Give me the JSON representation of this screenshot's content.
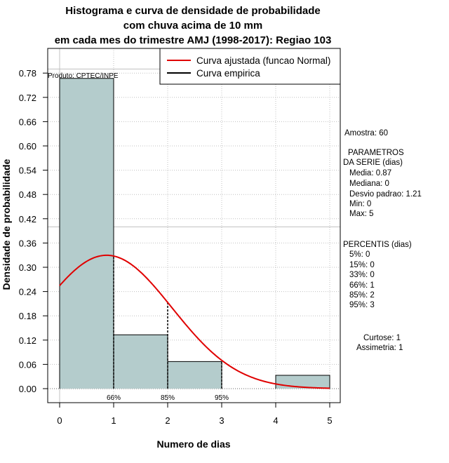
{
  "title_lines": [
    "Histograma e curva de densidade de probabilidade",
    "com chuva acima de 10 mm",
    "em cada mes do trimestre AMJ (1998-2017): Regiao 103"
  ],
  "producer": "Produto: CPTEC/INPE",
  "legend": {
    "items": [
      {
        "label": "Curva ajustada (funcao Normal)",
        "color": "#e00000"
      },
      {
        "label": "Curva empirica",
        "color": "#000000"
      }
    ]
  },
  "stats": {
    "sample": "Amostra: 60",
    "params_title_1": "PARAMETROS",
    "params_title_2": "DA SERIE (dias)",
    "params": [
      "Media: 0.87",
      "Mediana: 0",
      "Desvio padrao: 1.21",
      "Min: 0",
      "Max: 5"
    ],
    "percentis_title": "PERCENTIS (dias)",
    "percentis": [
      "5%: 0",
      "15%: 0",
      "33%: 0",
      "66%: 1",
      "85%: 2",
      "95%: 3"
    ],
    "curtose": "Curtose: 1",
    "assimetria": "Assimetria: 1"
  },
  "colors": {
    "bar_fill": "#b4cccc",
    "fitted": "#e00000",
    "grid": "#c0c0c0"
  },
  "chart_data": {
    "type": "bar",
    "title": "Histograma e curva de densidade de probabilidade com chuva acima de 10 mm em cada mes do trimestre AMJ (1998-2017): Regiao 103",
    "xlabel": "Numero de dias",
    "ylabel": "Densidade de probabilidade",
    "xlim": [
      0,
      5
    ],
    "ylim": [
      0,
      0.78
    ],
    "xticks": [
      0,
      1,
      2,
      3,
      4,
      5
    ],
    "xtick_labels": [
      "0",
      "1",
      "2",
      "3",
      "4",
      "5"
    ],
    "yticks": [
      0.0,
      0.06,
      0.12,
      0.18,
      0.24,
      0.3,
      0.36,
      0.42,
      0.48,
      0.54,
      0.6,
      0.66,
      0.72,
      0.78
    ],
    "ytick_labels": [
      "0.00",
      "0.06",
      "0.12",
      "0.18",
      "0.24",
      "0.30",
      "0.36",
      "0.42",
      "0.48",
      "0.54",
      "0.60",
      "0.66",
      "0.72",
      "0.78"
    ],
    "bins": [
      {
        "x0": 0,
        "x1": 1,
        "density": 0.767
      },
      {
        "x0": 1,
        "x1": 2,
        "density": 0.133
      },
      {
        "x0": 2,
        "x1": 3,
        "density": 0.067
      },
      {
        "x0": 3,
        "x1": 4,
        "density": 0.0
      },
      {
        "x0": 4,
        "x1": 5,
        "density": 0.033
      }
    ],
    "fitted_normal": {
      "mean": 0.87,
      "sd": 1.21,
      "x_from": 0,
      "x_to": 5
    },
    "percentile_markers": [
      {
        "x": 1,
        "label": "66%"
      },
      {
        "x": 2,
        "label": "85%"
      },
      {
        "x": 3,
        "label": "95%"
      }
    ],
    "reference_lines": {
      "h": [
        0.4,
        0.79
      ],
      "v": [
        0
      ]
    }
  }
}
